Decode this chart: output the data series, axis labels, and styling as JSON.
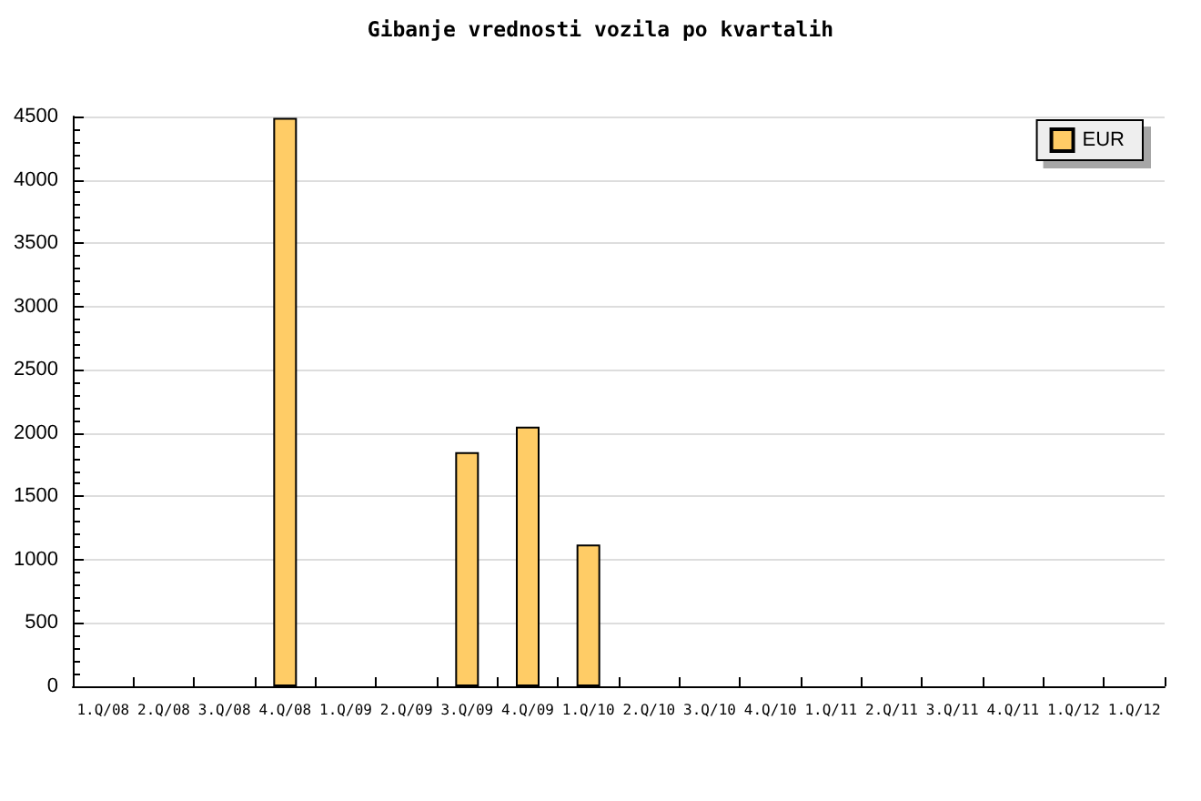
{
  "chart_data": {
    "type": "bar",
    "title": "Gibanje vrednosti vozila po kvartalih",
    "categories": [
      "1.Q/08",
      "2.Q/08",
      "3.Q/08",
      "4.Q/08",
      "1.Q/09",
      "2.Q/09",
      "3.Q/09",
      "4.Q/09",
      "1.Q/10",
      "2.Q/10",
      "3.Q/10",
      "4.Q/10",
      "1.Q/11",
      "2.Q/11",
      "3.Q/11",
      "4.Q/11",
      "1.Q/12",
      "1.Q/12"
    ],
    "series": [
      {
        "name": "EUR",
        "color": "#ffcc66",
        "values": [
          null,
          null,
          null,
          4490,
          null,
          null,
          1850,
          2050,
          1120,
          null,
          null,
          null,
          null,
          null,
          null,
          null,
          null,
          null
        ]
      }
    ],
    "ylim": [
      0,
      4500
    ],
    "yticks": [
      0,
      500,
      1000,
      1500,
      2000,
      2500,
      3000,
      3500,
      4000,
      4500
    ],
    "grid": "y",
    "legend": "top right"
  }
}
